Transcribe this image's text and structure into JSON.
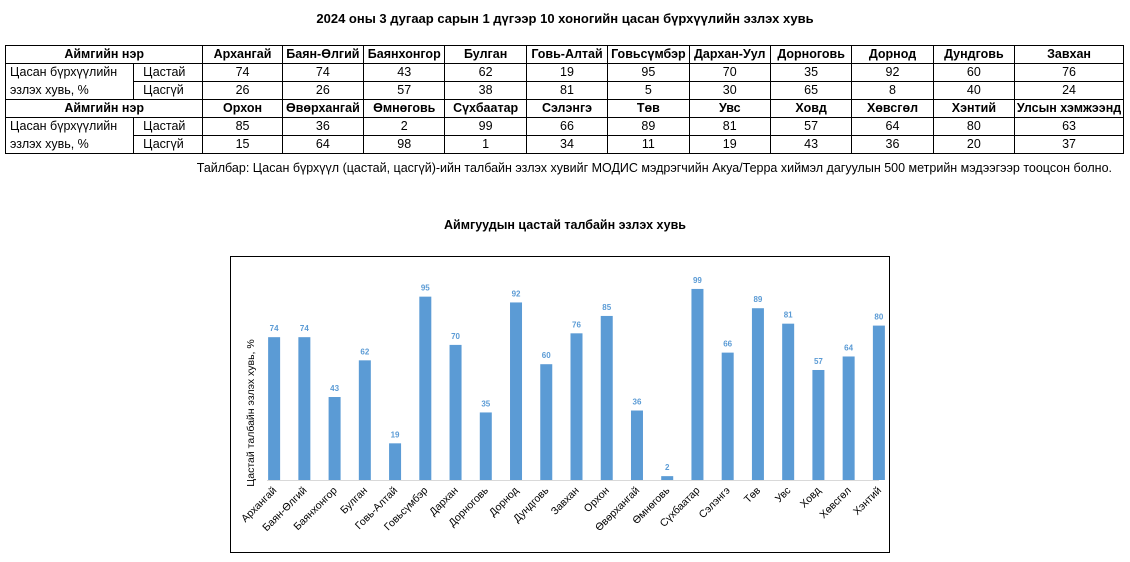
{
  "title": "2024 оны 3 дугаар сарын 1 дүгээр 10 хоногийн цасан бүрхүүлийн эзлэх хувь",
  "table": {
    "name_header": "Аймгийн нэр",
    "row_label_line1": "Цасан бүрхүүлийн",
    "row_label_line2": "эзлэх хувь, %",
    "snow_label": "Цастай",
    "nosnow_label": "Цасгүй",
    "blocks": [
      {
        "names": [
          "Архангай",
          "Баян-Өлгий",
          "Баянхонгор",
          "Булган",
          "Говь-Алтай",
          "Говьсүмбэр",
          "Дархан-Уул",
          "Дорноговь",
          "Дорнод",
          "Дундговь",
          "Завхан"
        ],
        "snow": [
          "74",
          "74",
          "43",
          "62",
          "19",
          "95",
          "70",
          "35",
          "92",
          "60",
          "76"
        ],
        "nosnow": [
          "26",
          "26",
          "57",
          "38",
          "81",
          "5",
          "30",
          "65",
          "8",
          "40",
          "24"
        ]
      },
      {
        "names": [
          "Орхон",
          "Өвөрхангай",
          "Өмнөговь",
          "Сүхбаатар",
          "Сэлэнгэ",
          "Төв",
          "Увс",
          "Ховд",
          "Хөвсгөл",
          "Хэнтий",
          "Улсын хэмжээнд"
        ],
        "snow": [
          "85",
          "36",
          "2",
          "99",
          "66",
          "89",
          "81",
          "57",
          "64",
          "80",
          "63"
        ],
        "nosnow": [
          "15",
          "64",
          "98",
          "1",
          "34",
          "11",
          "19",
          "43",
          "36",
          "20",
          "37"
        ]
      }
    ]
  },
  "note": "Тайлбар: Цасан бүрхүүл (цастай, цасгүй)-ийн талбайн эзлэх хувийг МОДИС мэдрэгчийн Акуа/Терра хиймэл дагуулын 500 метрийн мэдээгээр тооцсон болно.",
  "chart_data": {
    "type": "bar",
    "title": "Аймгуудын цастай талбайн эзлэх хувь",
    "ylabel": "Цастай талбайн эзлэх хувь, %",
    "xlabel": "",
    "categories": [
      "Архангай",
      "Баян-Өлгий",
      "Баянхонгор",
      "Булган",
      "Говь-Алтай",
      "Говьсүмбэр",
      "Дархан",
      "Дорноговь",
      "Дорнод",
      "Дундговь",
      "Завхан",
      "Орхон",
      "Өвөрхангай",
      "Өмнөговь",
      "Сүхбаатар",
      "Сэлэнгэ",
      "Төв",
      "Увс",
      "Ховд",
      "Хөвсгөл",
      "Хэнтий"
    ],
    "values": [
      74,
      74,
      43,
      62,
      19,
      95,
      70,
      35,
      92,
      60,
      76,
      85,
      36,
      2,
      99,
      66,
      89,
      81,
      57,
      64,
      80
    ],
    "ylim": [
      0,
      100
    ],
    "grid": false,
    "legend": "none",
    "data_labels": true,
    "bar_color": "#5b9bd5",
    "label_color": "#5b9bd5"
  }
}
